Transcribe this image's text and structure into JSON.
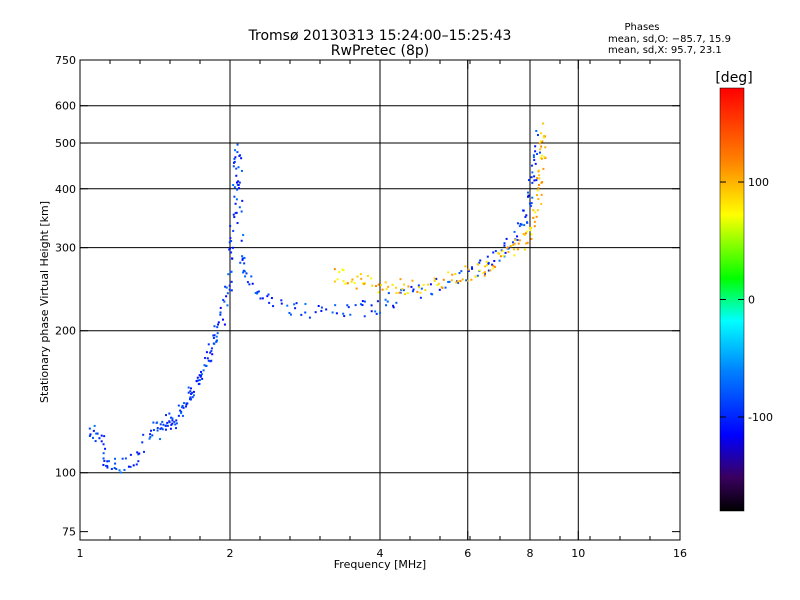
{
  "chart_data": {
    "type": "scatter",
    "title": "Tromsø 20130313 15:24:00–15:25:43",
    "subtitle": "RwPretec (8p)",
    "xlabel": "Frequency [MHz]",
    "ylabel": "Stationary phase Virtual Height [km]",
    "x_scale": "log",
    "y_scale": "log",
    "xlim": [
      1,
      16
    ],
    "ylim": [
      72,
      750
    ],
    "x_ticks": [
      1,
      2,
      4,
      6,
      8,
      10,
      16
    ],
    "x_tick_labels": [
      "1",
      "2",
      "4",
      "6",
      "8",
      "10",
      "16"
    ],
    "x_grid": [
      2,
      4,
      6,
      8,
      10
    ],
    "y_ticks": [
      75,
      100,
      200,
      300,
      400,
      500,
      600,
      750
    ],
    "y_tick_labels": [
      "75",
      "100",
      "200",
      "300",
      "400",
      "500",
      "600",
      "750"
    ],
    "y_grid": [
      100,
      200,
      300,
      400,
      500,
      600
    ],
    "grid": true,
    "colorbar": {
      "title": "[deg]",
      "range": [
        -180,
        180
      ],
      "ticks": [
        100,
        0,
        -100
      ],
      "tick_labels": [
        "100",
        "0",
        "-100"
      ]
    },
    "stats": {
      "heading": "Phases",
      "o_line": "mean, sd,O: −85.7, 15.9",
      "x_line": "mean, sd,X:  95.7, 23.1"
    },
    "series": [
      {
        "name": "O-mode trace (blue, ~-90 deg)",
        "phase": -90,
        "points": [
          [
            1.05,
            120
          ],
          [
            1.1,
            122
          ],
          [
            1.12,
            104
          ],
          [
            1.2,
            103
          ],
          [
            1.3,
            108
          ],
          [
            1.4,
            125
          ],
          [
            1.45,
            122
          ],
          [
            1.5,
            130
          ],
          [
            1.55,
            128
          ],
          [
            1.6,
            135
          ],
          [
            1.65,
            145
          ],
          [
            1.7,
            150
          ],
          [
            1.75,
            160
          ],
          [
            1.8,
            175
          ],
          [
            1.85,
            185
          ],
          [
            1.9,
            200
          ],
          [
            1.95,
            230
          ],
          [
            2.0,
            260
          ],
          [
            2.02,
            320
          ],
          [
            2.05,
            380
          ],
          [
            2.06,
            440
          ],
          [
            2.08,
            500
          ],
          [
            2.1,
            300
          ],
          [
            2.15,
            260
          ],
          [
            2.3,
            240
          ],
          [
            2.6,
            225
          ],
          [
            3.0,
            218
          ],
          [
            3.5,
            220
          ],
          [
            3.9,
            225
          ],
          [
            4.3,
            235
          ],
          [
            5.0,
            245
          ],
          [
            5.8,
            258
          ],
          [
            6.5,
            275
          ],
          [
            7.0,
            290
          ],
          [
            7.4,
            310
          ],
          [
            7.8,
            340
          ],
          [
            8.0,
            380
          ],
          [
            8.2,
            450
          ],
          [
            8.3,
            520
          ]
        ]
      },
      {
        "name": "X-mode trace (yellow, ~+95 deg)",
        "phase": 95,
        "points": [
          [
            3.2,
            265
          ],
          [
            3.5,
            258
          ],
          [
            3.8,
            252
          ],
          [
            4.2,
            248
          ],
          [
            4.6,
            247
          ],
          [
            5.2,
            250
          ],
          [
            5.8,
            262
          ],
          [
            6.3,
            270
          ],
          [
            6.8,
            280
          ],
          [
            7.3,
            295
          ],
          [
            7.8,
            310
          ],
          [
            8.1,
            330
          ],
          [
            8.3,
            380
          ],
          [
            8.4,
            430
          ],
          [
            8.5,
            480
          ],
          [
            8.5,
            550
          ]
        ]
      }
    ]
  }
}
